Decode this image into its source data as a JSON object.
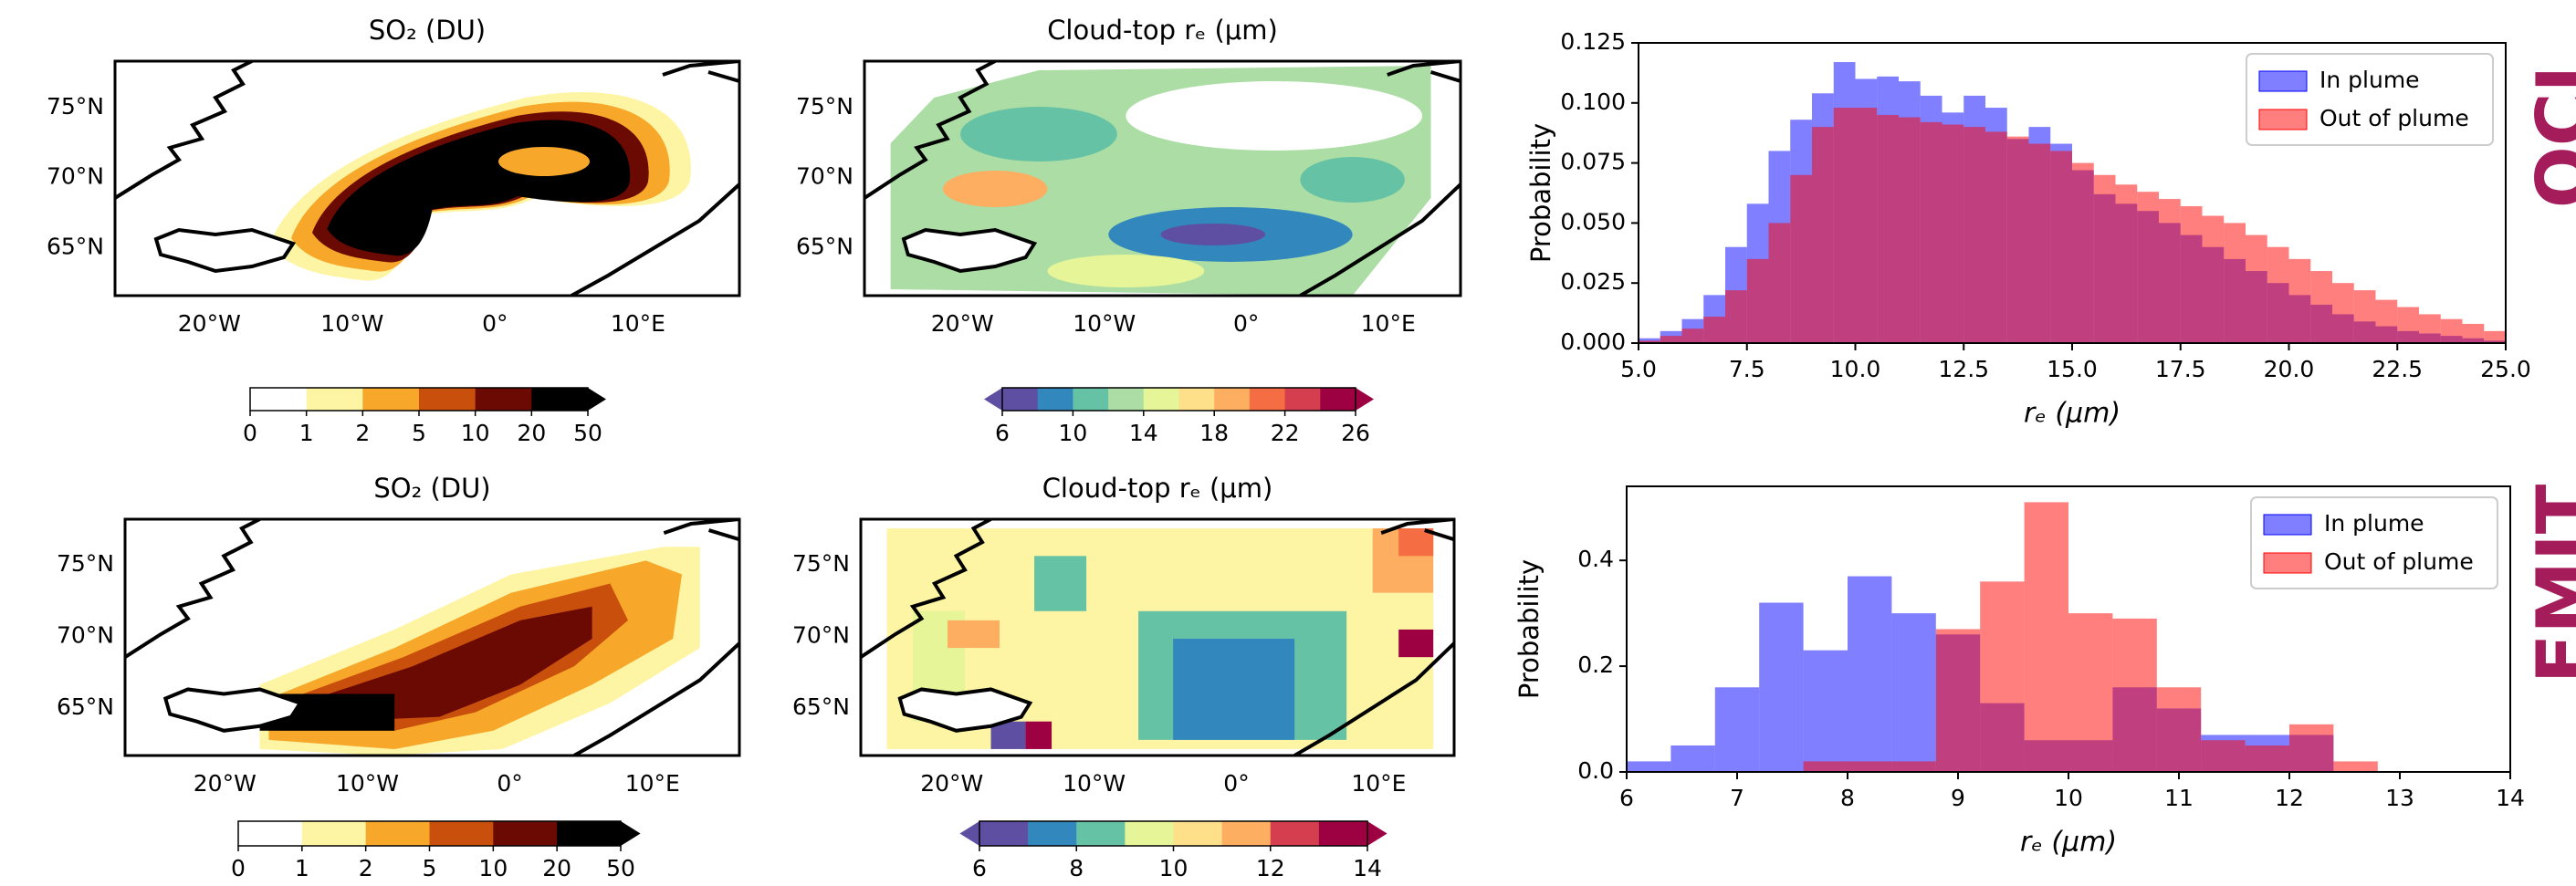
{
  "chart_data": [
    {
      "type": "map",
      "title": "SO₂ (DU)",
      "xlim": [
        -26.6,
        17.1
      ],
      "ylim": [
        61.6,
        78.3
      ],
      "xticks": [
        {
          "value": -20,
          "label": "20°W"
        },
        {
          "value": -10,
          "label": "10°W"
        },
        {
          "value": 0,
          "label": "0°"
        },
        {
          "value": 10,
          "label": "10°E"
        }
      ],
      "yticks": [
        {
          "value": 65,
          "label": "65°N"
        },
        {
          "value": 70,
          "label": "70°N"
        },
        {
          "value": 75,
          "label": "75°N"
        }
      ],
      "colorbar": {
        "ticks": [
          0,
          1,
          2,
          5,
          10,
          20,
          50
        ],
        "colors": [
          "#ffffff",
          "#fdf5a3",
          "#f7a82a",
          "#c94f0c",
          "#6b0a02",
          "#000000"
        ],
        "extend": "max"
      }
    },
    {
      "type": "map",
      "title": "Cloud-top rₑ (μm)",
      "xlim": [
        -26.9,
        15.1
      ],
      "ylim": [
        61.6,
        78.3
      ],
      "xticks": [
        {
          "value": -20,
          "label": "20°W"
        },
        {
          "value": -10,
          "label": "10°W"
        },
        {
          "value": 0,
          "label": "0°"
        },
        {
          "value": 10,
          "label": "10°E"
        }
      ],
      "yticks": [
        {
          "value": 65,
          "label": "65°N"
        },
        {
          "value": 70,
          "label": "70°N"
        },
        {
          "value": 75,
          "label": "75°N"
        }
      ],
      "colorbar": {
        "ticks": [
          6,
          10,
          14,
          18,
          22,
          26
        ],
        "colors": [
          "#5e4fa2",
          "#3288bd",
          "#66c2a5",
          "#abdda4",
          "#e6f598",
          "#fee08b",
          "#fdae61",
          "#f46d43",
          "#d53e4f",
          "#9e0142"
        ],
        "extend": "both"
      }
    },
    {
      "type": "map",
      "title": "SO₂ (DU)",
      "xlim": [
        -27.0,
        16.1
      ],
      "ylim": [
        61.7,
        78.2
      ],
      "xticks": [
        {
          "value": -20,
          "label": "20°W"
        },
        {
          "value": -10,
          "label": "10°W"
        },
        {
          "value": 0,
          "label": "0°"
        },
        {
          "value": 10,
          "label": "10°E"
        }
      ],
      "yticks": [
        {
          "value": 65,
          "label": "65°N"
        },
        {
          "value": 70,
          "label": "70°N"
        },
        {
          "value": 75,
          "label": "75°N"
        }
      ],
      "colorbar": {
        "ticks": [
          0,
          1,
          2,
          5,
          10,
          20,
          50
        ],
        "colors": [
          "#ffffff",
          "#fdf5a3",
          "#f7a82a",
          "#c94f0c",
          "#6b0a02",
          "#000000"
        ],
        "extend": "max"
      }
    },
    {
      "type": "map",
      "title": "Cloud-top rₑ (μm)",
      "xlim": [
        -26.4,
        15.3
      ],
      "ylim": [
        61.7,
        78.2
      ],
      "xticks": [
        {
          "value": -20,
          "label": "20°W"
        },
        {
          "value": -10,
          "label": "10°W"
        },
        {
          "value": 0,
          "label": "0°"
        },
        {
          "value": 10,
          "label": "10°E"
        }
      ],
      "yticks": [
        {
          "value": 65,
          "label": "65°N"
        },
        {
          "value": 70,
          "label": "70°N"
        },
        {
          "value": 75,
          "label": "75°N"
        }
      ],
      "colorbar": {
        "ticks": [
          6,
          8,
          10,
          12,
          14
        ],
        "colors": [
          "#5e4fa2",
          "#3288bd",
          "#66c2a5",
          "#e6f598",
          "#fee08b",
          "#fdae61",
          "#d53e4f",
          "#9e0142"
        ],
        "extend": "both"
      }
    },
    {
      "type": "histogram",
      "xlabel": "rₑ (μm)",
      "ylabel": "Probability",
      "xlim": [
        5,
        25
      ],
      "ylim": [
        0,
        0.125
      ],
      "xticks": [
        {
          "value": 5,
          "label": "5.0"
        },
        7.5,
        {
          "value": 10,
          "label": "10.0"
        },
        12.5,
        {
          "value": 15,
          "label": "15.0"
        },
        17.5,
        {
          "value": 20,
          "label": "20.0"
        },
        22.5,
        {
          "value": 25,
          "label": "25.0"
        }
      ],
      "yticks": [
        {
          "value": 0,
          "label": "0.000"
        },
        0.025,
        {
          "value": 0.05,
          "label": "0.050"
        },
        0.075,
        {
          "value": 0.1,
          "label": "0.100"
        },
        0.125
      ],
      "legend": "upper right",
      "alpha": 0.5,
      "series": [
        {
          "name": "In plume",
          "color": "#0000ff",
          "bins": [
            5,
            5.5,
            6,
            6.5,
            7,
            7.5,
            8,
            8.5,
            9,
            9.5,
            10,
            10.5,
            11,
            11.5,
            12,
            12.5,
            13,
            13.5,
            14,
            14.5,
            15,
            15.5,
            16,
            16.5,
            17,
            17.5,
            18,
            18.5,
            19,
            19.5,
            20,
            20.5,
            21,
            21.5,
            22,
            22.5,
            23,
            23.5,
            24,
            24.5,
            25
          ],
          "values": [
            0.002,
            0.005,
            0.01,
            0.02,
            0.04,
            0.058,
            0.08,
            0.093,
            0.104,
            0.117,
            0.11,
            0.111,
            0.109,
            0.103,
            0.096,
            0.103,
            0.098,
            0.085,
            0.09,
            0.083,
            0.072,
            0.062,
            0.058,
            0.055,
            0.05,
            0.045,
            0.04,
            0.035,
            0.03,
            0.025,
            0.02,
            0.016,
            0.012,
            0.009,
            0.007,
            0.005,
            0.004,
            0.003,
            0.002,
            0.001
          ]
        },
        {
          "name": "Out of plume",
          "color": "#ff0000",
          "bins": [
            5,
            5.5,
            6,
            6.5,
            7,
            7.5,
            8,
            8.5,
            9,
            9.5,
            10,
            10.5,
            11,
            11.5,
            12,
            12.5,
            13,
            13.5,
            14,
            14.5,
            15,
            15.5,
            16,
            16.5,
            17,
            17.5,
            18,
            18.5,
            19,
            19.5,
            20,
            20.5,
            21,
            21.5,
            22,
            22.5,
            23,
            23.5,
            24,
            24.5,
            25
          ],
          "values": [
            0.001,
            0.003,
            0.006,
            0.011,
            0.022,
            0.035,
            0.05,
            0.07,
            0.09,
            0.098,
            0.098,
            0.095,
            0.094,
            0.092,
            0.091,
            0.09,
            0.088,
            0.086,
            0.083,
            0.08,
            0.075,
            0.07,
            0.066,
            0.063,
            0.06,
            0.057,
            0.053,
            0.05,
            0.045,
            0.04,
            0.035,
            0.03,
            0.025,
            0.022,
            0.018,
            0.015,
            0.012,
            0.01,
            0.008,
            0.005
          ]
        }
      ]
    },
    {
      "type": "histogram",
      "xlabel": "rₑ (μm)",
      "ylabel": "Probability",
      "xlim": [
        6,
        14
      ],
      "ylim": [
        0,
        0.54
      ],
      "xticks": [
        6,
        7,
        8,
        9,
        10,
        11,
        12,
        13,
        14
      ],
      "yticks": [
        {
          "value": 0,
          "label": "0.0"
        },
        0.2,
        0.4
      ],
      "legend": "upper right",
      "alpha": 0.5,
      "series": [
        {
          "name": "In plume",
          "color": "#0000ff",
          "bins": [
            6,
            6.4,
            6.8,
            7.2,
            7.6,
            8,
            8.4,
            8.8,
            9.2,
            9.6,
            10,
            10.4,
            10.8,
            11.2,
            11.6,
            12,
            12.4
          ],
          "values": [
            0.02,
            0.05,
            0.16,
            0.32,
            0.23,
            0.37,
            0.3,
            0.26,
            0.13,
            0.06,
            0.06,
            0.16,
            0.12,
            0.07,
            0.07,
            0.07
          ]
        },
        {
          "name": "Out of plume",
          "color": "#ff0000",
          "bins": [
            7.6,
            8,
            8.4,
            8.8,
            9.2,
            9.6,
            10,
            10.4,
            10.8,
            11.2,
            11.6,
            12,
            12.4,
            12.8
          ],
          "values": [
            0.02,
            0.02,
            0.02,
            0.27,
            0.36,
            0.51,
            0.3,
            0.29,
            0.16,
            0.06,
            0.05,
            0.09,
            0.02
          ]
        }
      ]
    }
  ],
  "panel_labels": [
    "OCI",
    "EMIT"
  ]
}
